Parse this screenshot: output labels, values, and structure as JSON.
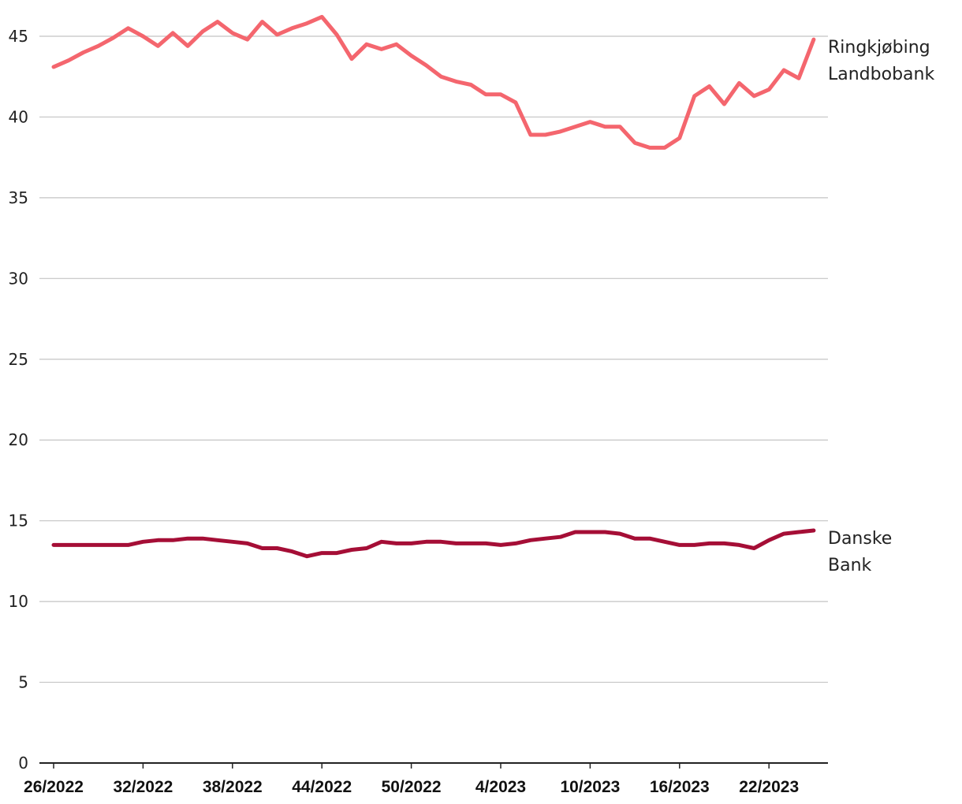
{
  "chart_data": {
    "type": "line",
    "title": "",
    "xlabel": "",
    "ylabel": "",
    "ylim": [
      0,
      46.5
    ],
    "y_ticks": [
      0,
      5,
      10,
      15,
      20,
      25,
      30,
      35,
      40,
      45
    ],
    "y_tick_labels": [
      "0",
      "5",
      "10",
      "15",
      "20",
      "25",
      "30",
      "35",
      "40",
      "45"
    ],
    "x_tick_labels": [
      "26/2022",
      "32/2022",
      "38/2022",
      "44/2022",
      "50/2022",
      "4/2023",
      "10/2023",
      "16/2023",
      "22/2023"
    ],
    "x_tick_every": 6,
    "grid": "horizontal",
    "series_labels_position": "right",
    "series": [
      {
        "name": "Ringkjøbing Landbobank",
        "label_lines": [
          "Ringkjøbing",
          "Landbobank"
        ],
        "color": "#f4666e",
        "values": [
          43.1,
          43.5,
          44.0,
          44.4,
          44.9,
          45.5,
          45.0,
          44.4,
          45.2,
          44.4,
          45.3,
          45.9,
          45.2,
          44.8,
          45.9,
          45.1,
          45.5,
          45.8,
          46.2,
          45.1,
          43.6,
          44.5,
          44.2,
          44.5,
          43.8,
          43.2,
          42.5,
          42.2,
          42.0,
          41.4,
          41.4,
          40.9,
          38.9,
          38.9,
          39.1,
          39.4,
          39.7,
          39.4,
          39.4,
          38.4,
          38.1,
          38.1,
          38.7,
          41.3,
          41.9,
          40.8,
          42.1,
          41.3,
          41.7,
          42.9,
          42.4,
          44.8
        ]
      },
      {
        "name": "Danske Bank",
        "label_lines": [
          "Danske",
          "Bank"
        ],
        "color": "#a50e36",
        "values": [
          13.5,
          13.5,
          13.5,
          13.5,
          13.5,
          13.5,
          13.7,
          13.8,
          13.8,
          13.9,
          13.9,
          13.8,
          13.7,
          13.6,
          13.3,
          13.3,
          13.1,
          12.8,
          13.0,
          13.0,
          13.2,
          13.3,
          13.7,
          13.6,
          13.6,
          13.7,
          13.7,
          13.6,
          13.6,
          13.6,
          13.5,
          13.6,
          13.8,
          13.9,
          14.0,
          14.3,
          14.3,
          14.3,
          14.2,
          13.9,
          13.9,
          13.7,
          13.5,
          13.5,
          13.6,
          13.6,
          13.5,
          13.3,
          13.8,
          14.2,
          14.3,
          14.4
        ]
      }
    ]
  }
}
